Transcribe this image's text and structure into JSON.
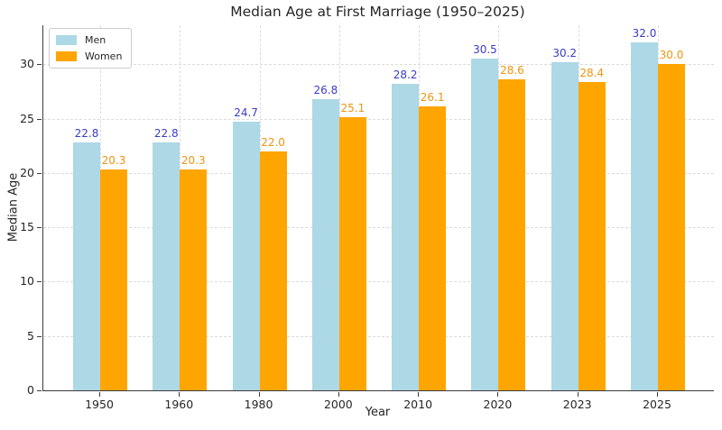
{
  "chart_data": {
    "type": "bar",
    "title": "Median Age at First Marriage (1950–2025)",
    "xlabel": "Year",
    "ylabel": "Median Age",
    "categories": [
      "1950",
      "1960",
      "1980",
      "2000",
      "2010",
      "2020",
      "2023",
      "2025"
    ],
    "series": [
      {
        "name": "Men",
        "color": "#ADD8E6",
        "label_color": "#3b3bc8",
        "values": [
          22.8,
          22.8,
          24.7,
          26.8,
          28.2,
          30.5,
          30.2,
          32.0
        ]
      },
      {
        "name": "Women",
        "color": "#FFA500",
        "label_color": "#ef9410",
        "values": [
          20.3,
          20.3,
          22.0,
          25.1,
          26.1,
          28.6,
          28.4,
          30.0
        ]
      }
    ],
    "ylim": [
      0,
      33.6
    ],
    "yticks": [
      0,
      5,
      10,
      15,
      20,
      25,
      30
    ],
    "grid": true,
    "legend_position": "upper left",
    "colors": {
      "background": "#ffffff",
      "grid": "#dcdcdc",
      "spine": "#3c3c3c",
      "text": "#262626"
    }
  }
}
